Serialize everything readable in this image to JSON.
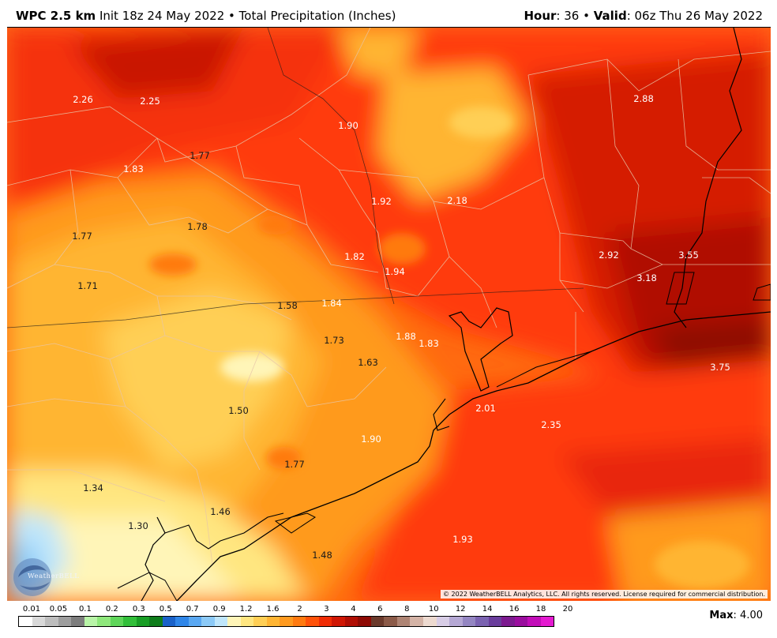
{
  "header": {
    "model": "WPC 2.5 km",
    "init": "Init 18z 24 May 2022",
    "bullet": "•",
    "product": "Total Precipitation (Inches)",
    "hour_label": "Hour",
    "hour_value": ": 36",
    "valid_label": "Valid",
    "valid_value": ": 06z Thu 26 May 2022"
  },
  "map_values": [
    "2.26",
    "2.25",
    "1.90",
    "2.88",
    "1.77",
    "1.83",
    "1.92",
    "2.18",
    "1.78",
    "1.77",
    "1.82",
    "2.92",
    "3.55",
    "1.94",
    "3.18",
    "1.71",
    "1.58",
    "1.84",
    "1.73",
    "1.88",
    "1.83",
    "1.63",
    "3.75",
    "1.50",
    "2.01",
    "2.35",
    "1.90",
    "1.77",
    "1.34",
    "1.46",
    "1.30",
    "1.93",
    "1.48"
  ],
  "copyright": "© 2022 WeatherBELL Analytics, LLC. All rights reserved. License required for commercial distribution.",
  "logo_text": "WeatherBELL",
  "legend": {
    "ticks": [
      "0.01",
      "0.05",
      "0.1",
      "0.2",
      "0.3",
      "0.5",
      "0.7",
      "0.9",
      "1.2",
      "1.6",
      "2",
      "3",
      "4",
      "6",
      "8",
      "10",
      "12",
      "14",
      "16",
      "18",
      "20"
    ],
    "colors": [
      "#ffffff",
      "#d9d9d9",
      "#bdbdbd",
      "#9e9e9e",
      "#7d7d7d",
      "#b9f5a8",
      "#8fe87c",
      "#5fd65a",
      "#32bf3a",
      "#189e25",
      "#0f7d1b",
      "#1a62c9",
      "#2f86e8",
      "#5aa8f2",
      "#8ccaf7",
      "#bfe6fb",
      "#fff5b8",
      "#ffe680",
      "#ffcf55",
      "#ffb533",
      "#ff9a1f",
      "#ff7a10",
      "#ff5209",
      "#f02c05",
      "#d01704",
      "#b00e04",
      "#8e0a04",
      "#6b3a2c",
      "#8b5a48",
      "#ae8474",
      "#d4b3a6",
      "#eddad0",
      "#d8cde6",
      "#b5a8d4",
      "#9486c2",
      "#7b63b1",
      "#6a3d9c",
      "#7c1a8f",
      "#9a0d9e",
      "#c20db8",
      "#e41ad0"
    ]
  },
  "max_label": "Max",
  "max_value": ": 4.00"
}
